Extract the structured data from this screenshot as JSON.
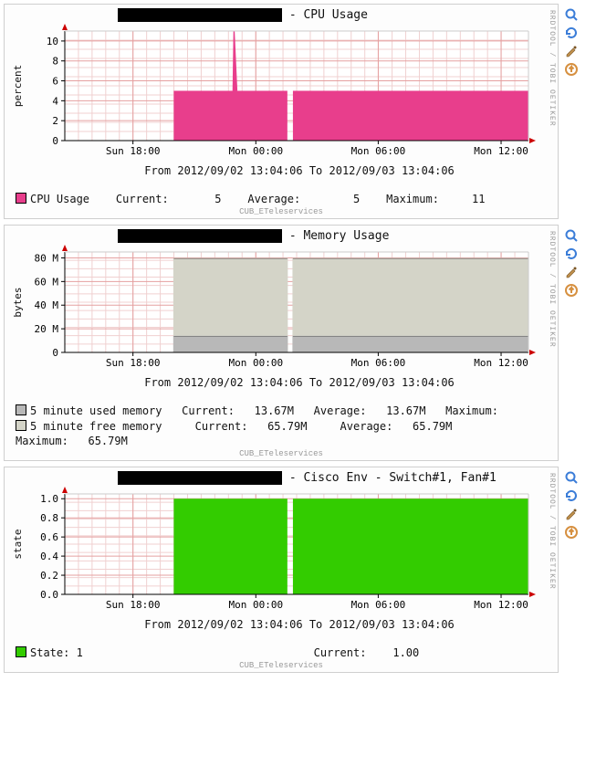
{
  "time_axis": {
    "labels": [
      "Sun 18:00",
      "Mon 00:00",
      "Mon 06:00",
      "Mon 12:00"
    ],
    "positions": [
      0.147,
      0.412,
      0.676,
      0.941
    ],
    "data_start": 0.235,
    "gap_at": 0.48,
    "gap_width": 0.012
  },
  "chart_common": {
    "plot_bg": "#ffffff",
    "grid_color_minor": "#f0d0d0",
    "grid_color_major": "#e5a0a0",
    "axis_color": "#000000",
    "arrow_color": "#cc0000",
    "rrd_text": "RRDTOOL / TOBI OETIKER",
    "footer_label": "CUB_ETeleservices"
  },
  "toolbar": {
    "icons": [
      {
        "name": "zoom-icon",
        "title": "Zoom"
      },
      {
        "name": "refresh-icon",
        "title": "Refresh"
      },
      {
        "name": "edit-icon",
        "title": "Edit"
      },
      {
        "name": "export-icon",
        "title": "Export"
      }
    ]
  },
  "panels": [
    {
      "id": "cpu",
      "title_suffix": " - CPU Usage",
      "blackbox_w": 180,
      "blackbox_h": 15,
      "ylabel": "percent",
      "ylim": [
        0,
        11
      ],
      "yticks": [
        0,
        2,
        4,
        6,
        8,
        10
      ],
      "area_level": 5,
      "spike_level": 11,
      "spike_at": 0.365,
      "fill_color": "#e83e8c",
      "fromto": "From 2012/09/02 13:04:06 To 2012/09/03 13:04:06",
      "legend_line": "CPU Usage    Current:       5    Average:        5    Maximum:     11",
      "height": 150
    },
    {
      "id": "mem",
      "title_suffix": " - Memory Usage",
      "blackbox_w": 180,
      "blackbox_h": 15,
      "ylabel": "bytes",
      "ylim": [
        0,
        85
      ],
      "yticks": [
        0,
        20,
        40,
        60,
        80
      ],
      "ytick_labels": [
        "0",
        "20 M",
        "40 M",
        "60 M",
        "80 M"
      ],
      "stack": [
        {
          "level": 13.67,
          "color": "#b8b8b8"
        },
        {
          "level": 79.46,
          "color": "#d4d4c8"
        }
      ],
      "fromto": "From 2012/09/02 13:04:06 To 2012/09/03 13:04:06",
      "legend_lines": [
        {
          "swatch": "#b8b8b8",
          "text": "5 minute used memory   Current:   13.67M   Average:   13.67M   Maximum:"
        },
        {
          "swatch": "#d4d4c8",
          "text": "5 minute free memory     Current:   65.79M     Average:   65.79M"
        },
        {
          "swatch": null,
          "text": "Maximum:   65.79M"
        }
      ],
      "height": 140
    },
    {
      "id": "fan",
      "title_suffix": " - Cisco Env - Switch#1, Fan#1",
      "blackbox_w": 180,
      "blackbox_h": 15,
      "ylabel": "state",
      "ylim": [
        0,
        1.05
      ],
      "yticks": [
        0.0,
        0.2,
        0.4,
        0.6,
        0.8,
        1.0
      ],
      "ytick_labels": [
        "0.0",
        "0.2",
        "0.4",
        "0.6",
        "0.8",
        "1.0"
      ],
      "area_level": 1.0,
      "fill_color": "#33cc00",
      "fromto": "From 2012/09/02 13:04:06 To 2012/09/03 13:04:06",
      "legend_line": "State: 1                                   Current:    1.00",
      "height": 140
    }
  ]
}
